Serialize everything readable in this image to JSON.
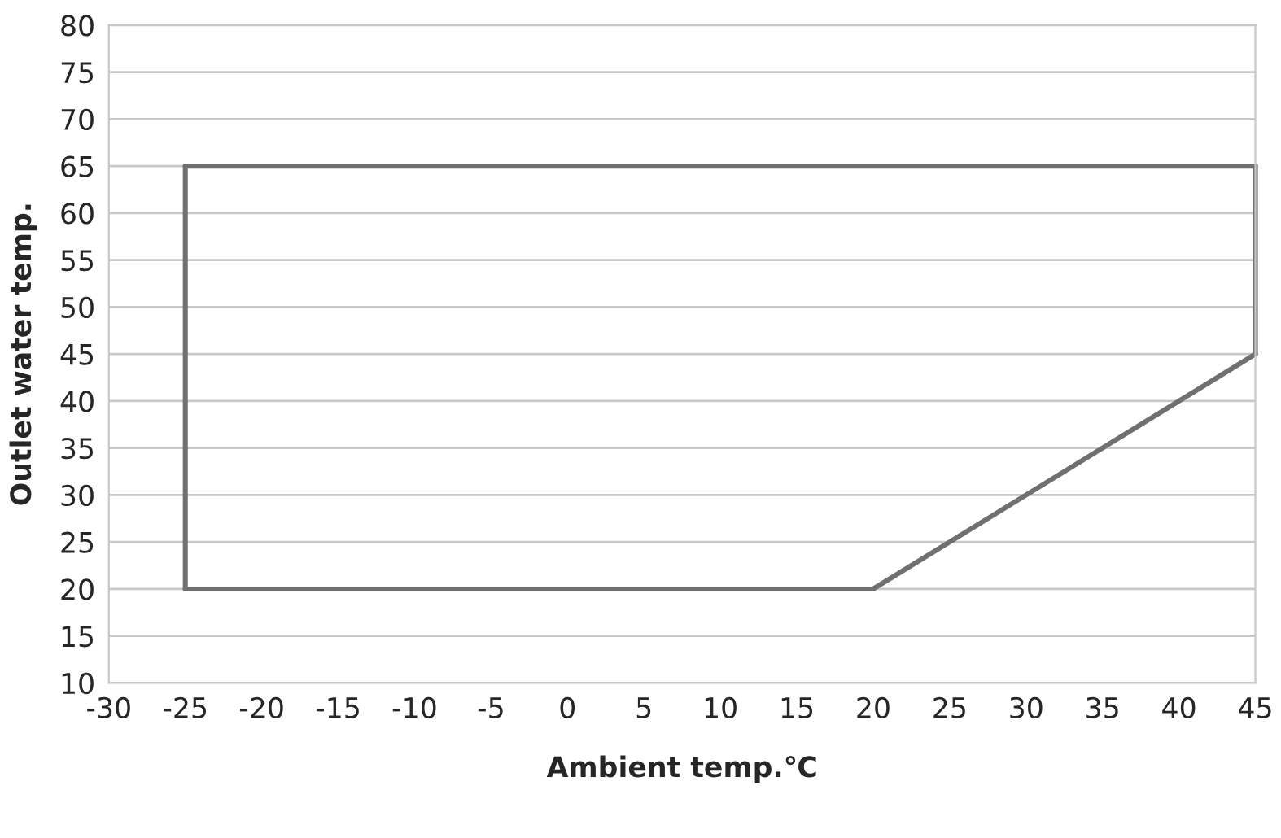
{
  "chart_data": {
    "type": "line",
    "xlabel": "Ambient temp.℃",
    "ylabel": "Outlet water temp.",
    "series": [
      {
        "color": "#707070",
        "x": [
          -25,
          45
        ],
        "values": [
          65,
          65
        ]
      },
      {
        "color": "#707070",
        "x": [
          -25,
          20,
          45
        ],
        "values": [
          20,
          20,
          45
        ]
      },
      {
        "color": "#707070",
        "x": [
          -25,
          -25
        ],
        "values": [
          20,
          65
        ]
      },
      {
        "color": "#707070",
        "x": [
          45,
          45
        ],
        "values": [
          45,
          65
        ]
      }
    ],
    "xlim": [
      -30,
      45
    ],
    "xticks": [
      -30,
      -25,
      -20,
      -15,
      -10,
      -5,
      0,
      5,
      10,
      15,
      20,
      25,
      30,
      35,
      40,
      45
    ],
    "ylim": [
      10,
      80
    ],
    "yticks": [
      10,
      15,
      20,
      25,
      30,
      35,
      40,
      45,
      50,
      55,
      60,
      65,
      70,
      75,
      80
    ],
    "grid": "y",
    "marker": "none",
    "line_style": "solid",
    "legend": false
  }
}
